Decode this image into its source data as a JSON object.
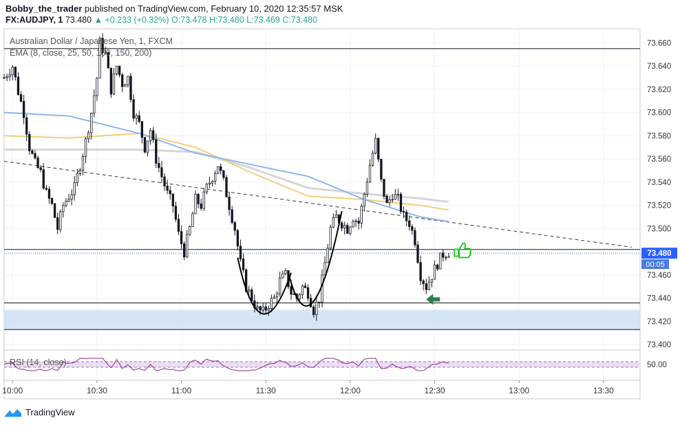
{
  "header": {
    "author": "Bobby_the_trader",
    "published": "published on TradingView.com, February 10, 2020 12:35:57 MSK"
  },
  "quote": {
    "symbol": "FX:AUDJPY, 1",
    "last": "73.480",
    "change": "▲ +0.233 (+0.32%)",
    "open": "O:73.478",
    "high": "H:73.480",
    "low": "L:73.469",
    "close": "C:73.480"
  },
  "legend": {
    "instrument": "Australian Dollar / Japanese Yen, 1, FXCM",
    "ema": "EMA (8, close, 25, 50, 100, 150, 200)",
    "rsi": "RSI (14, close)"
  },
  "footer": {
    "brand": "TradingView"
  },
  "colors": {
    "up": "#26a69a",
    "candle": "#131722",
    "ema_blue": "#8fb6e6",
    "ema_yellow": "#f0cf7a",
    "ema_gray": "#d6d6d6",
    "zone": "#cfe0f5",
    "rsi_line": "#8e2a8e",
    "rsi_band": "#eddcf5",
    "price_label_bg": "#2962ff",
    "thumb": "#22cc22",
    "arrow": "#2e7d46"
  },
  "chart_data": {
    "type": "candlestick",
    "title": "Australian Dollar / Japanese Yen, 1, FXCM",
    "timeframe": "1 minute",
    "x_tick_labels": [
      "10:00",
      "10:30",
      "11:00",
      "11:30",
      "12:00",
      "12:30",
      "13:00",
      "13:30"
    ],
    "y_tick_labels": [
      "73.660",
      "73.640",
      "73.620",
      "73.600",
      "73.580",
      "73.560",
      "73.540",
      "73.520",
      "73.500",
      "73.460",
      "73.440",
      "73.420",
      "73.400"
    ],
    "ylim": [
      73.396,
      73.672
    ],
    "last_price_label": "73.480",
    "countdown_label": "00:05",
    "horizontal_levels": [
      73.655,
      73.482,
      73.436,
      73.413
    ],
    "support_zone": [
      73.413,
      73.43
    ],
    "trendline": {
      "from": [
        "09:57",
        73.558
      ],
      "to": [
        "13:40",
        73.484
      ],
      "style": "dashed"
    },
    "close_path": [
      [
        "09:57",
        73.63
      ],
      [
        "10:00",
        73.64
      ],
      [
        "10:02",
        73.618
      ],
      [
        "10:04",
        73.6
      ],
      [
        "10:06",
        73.57
      ],
      [
        "10:08",
        73.556
      ],
      [
        "10:10",
        73.548
      ],
      [
        "10:12",
        73.53
      ],
      [
        "10:14",
        73.52
      ],
      [
        "10:16",
        73.5
      ],
      [
        "10:18",
        73.52
      ],
      [
        "10:20",
        73.528
      ],
      [
        "10:22",
        73.535
      ],
      [
        "10:24",
        73.555
      ],
      [
        "10:26",
        73.575
      ],
      [
        "10:28",
        73.6
      ],
      [
        "10:30",
        73.63
      ],
      [
        "10:31",
        73.66
      ],
      [
        "10:33",
        73.65
      ],
      [
        "10:35",
        73.62
      ],
      [
        "10:37",
        73.64
      ],
      [
        "10:39",
        73.625
      ],
      [
        "10:41",
        73.63
      ],
      [
        "10:43",
        73.6
      ],
      [
        "10:45",
        73.59
      ],
      [
        "10:47",
        73.57
      ],
      [
        "10:49",
        73.585
      ],
      [
        "10:51",
        73.56
      ],
      [
        "10:53",
        73.545
      ],
      [
        "10:55",
        73.53
      ],
      [
        "10:57",
        73.52
      ],
      [
        "10:59",
        73.495
      ],
      [
        "11:01",
        73.48
      ],
      [
        "11:03",
        73.5
      ],
      [
        "11:05",
        73.525
      ],
      [
        "11:07",
        73.52
      ],
      [
        "11:09",
        73.535
      ],
      [
        "11:11",
        73.545
      ],
      [
        "11:13",
        73.555
      ],
      [
        "11:15",
        73.54
      ],
      [
        "11:17",
        73.52
      ],
      [
        "11:19",
        73.5
      ],
      [
        "11:21",
        73.47
      ],
      [
        "11:23",
        73.45
      ],
      [
        "11:25",
        73.44
      ],
      [
        "11:27",
        73.43
      ],
      [
        "11:29",
        73.428
      ],
      [
        "11:31",
        73.435
      ],
      [
        "11:33",
        73.44
      ],
      [
        "11:35",
        73.455
      ],
      [
        "11:37",
        73.46
      ],
      [
        "11:39",
        73.445
      ],
      [
        "11:41",
        73.44
      ],
      [
        "11:43",
        73.45
      ],
      [
        "11:45",
        73.445
      ],
      [
        "11:47",
        73.43
      ],
      [
        "11:49",
        73.44
      ],
      [
        "11:51",
        73.47
      ],
      [
        "11:53",
        73.5
      ],
      [
        "11:55",
        73.51
      ],
      [
        "11:57",
        73.505
      ],
      [
        "11:59",
        73.5
      ],
      [
        "12:01",
        73.51
      ],
      [
        "12:03",
        73.505
      ],
      [
        "12:05",
        73.53
      ],
      [
        "12:07",
        73.555
      ],
      [
        "12:09",
        73.575
      ],
      [
        "12:11",
        73.54
      ],
      [
        "12:13",
        73.52
      ],
      [
        "12:15",
        73.53
      ],
      [
        "12:17",
        73.525
      ],
      [
        "12:19",
        73.51
      ],
      [
        "12:21",
        73.505
      ],
      [
        "12:23",
        73.49
      ],
      [
        "12:25",
        73.46
      ],
      [
        "12:27",
        73.45
      ],
      [
        "12:29",
        73.46
      ],
      [
        "12:31",
        73.47
      ],
      [
        "12:33",
        73.478
      ],
      [
        "12:35",
        73.48
      ]
    ],
    "ema_series": [
      {
        "color": "blue",
        "values": [
          73.6,
          73.597,
          73.582,
          73.565,
          73.555,
          73.545,
          73.525,
          73.51,
          73.506
        ]
      },
      {
        "color": "yellow",
        "values": [
          73.58,
          73.578,
          73.582,
          73.57,
          73.548,
          73.528,
          73.525,
          73.52,
          73.516
        ]
      },
      {
        "color": "gray",
        "values": [
          73.568,
          73.568,
          73.568,
          73.566,
          73.552,
          73.535,
          73.53,
          73.526,
          73.523
        ]
      }
    ],
    "ema_times": [
      "09:57",
      "10:20",
      "10:45",
      "11:05",
      "11:25",
      "11:45",
      "12:05",
      "12:25",
      "12:35"
    ],
    "annotations": [
      "double-bottom arcs",
      "green down-left arrow",
      "green thumbs-up"
    ],
    "rsi": {
      "label": "RSI (14, close)",
      "tick_label": "50.00",
      "bands": [
        30,
        70
      ],
      "range": [
        0,
        100
      ]
    }
  }
}
